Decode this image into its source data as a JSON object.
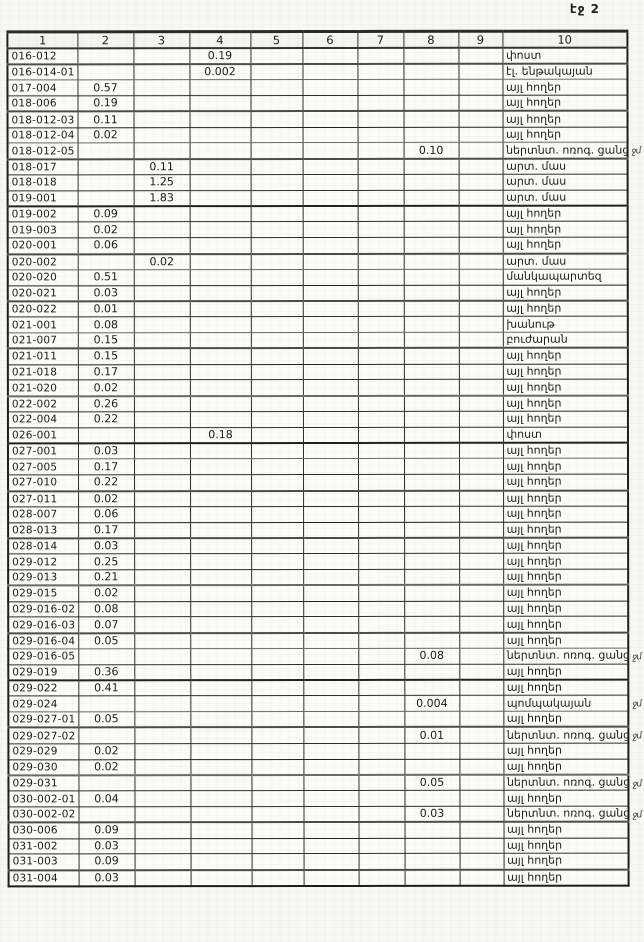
{
  "page_label": "էջ 2",
  "table": {
    "headers": [
      "1",
      "2",
      "3",
      "4",
      "5",
      "6",
      "7",
      "8",
      "9",
      "10"
    ],
    "rows": [
      {
        "code": "016-012",
        "col": 4,
        "value": "0.19",
        "use": "փոստ",
        "mark": ""
      },
      {
        "code": "016-014-01",
        "col": 4,
        "value": "0.002",
        "use": "էլ. ենթակայան",
        "mark": ""
      },
      {
        "code": "017-004",
        "col": 2,
        "value": "0.57",
        "use": "այլ հողեր",
        "mark": ""
      },
      {
        "code": "018-006",
        "col": 2,
        "value": "0.19",
        "use": "այլ հողեր",
        "mark": ""
      },
      {
        "code": "018-012-03",
        "col": 2,
        "value": "0.11",
        "use": "այլ հողեր",
        "mark": ""
      },
      {
        "code": "018-012-04",
        "col": 2,
        "value": "0.02",
        "use": "այլ հողեր",
        "mark": ""
      },
      {
        "code": "018-012-05",
        "col": 8,
        "value": "0.10",
        "use": "ներտնտ. ոռոգ. ցանց",
        "mark": "ջմ"
      },
      {
        "code": "018-017",
        "col": 3,
        "value": "0.11",
        "use": "արտ. մաս",
        "mark": ""
      },
      {
        "code": "018-018",
        "col": 3,
        "value": "1.25",
        "use": "արտ. մաս",
        "mark": ""
      },
      {
        "code": "019-001",
        "col": 3,
        "value": "1.83",
        "use": "արտ. մաս",
        "mark": ""
      },
      {
        "code": "019-002",
        "col": 2,
        "value": "0.09",
        "use": "այլ հողեր",
        "mark": ""
      },
      {
        "code": "019-003",
        "col": 2,
        "value": "0.02",
        "use": "այլ հողեր",
        "mark": ""
      },
      {
        "code": "020-001",
        "col": 2,
        "value": "0.06",
        "use": "այլ հողեր",
        "mark": ""
      },
      {
        "code": "020-002",
        "col": 3,
        "value": "0.02",
        "use": "արտ. մաս",
        "mark": ""
      },
      {
        "code": "020-020",
        "col": 2,
        "value": "0.51",
        "use": "մանկապարտեզ",
        "mark": ""
      },
      {
        "code": "020-021",
        "col": 2,
        "value": "0.03",
        "use": "այլ հողեր",
        "mark": ""
      },
      {
        "code": "020-022",
        "col": 2,
        "value": "0.01",
        "use": "այլ հողեր",
        "mark": ""
      },
      {
        "code": "021-001",
        "col": 2,
        "value": "0.08",
        "use": "խանութ",
        "mark": ""
      },
      {
        "code": "021-007",
        "col": 2,
        "value": "0.15",
        "use": "բուժարան",
        "mark": ""
      },
      {
        "code": "021-011",
        "col": 2,
        "value": "0.15",
        "use": "այլ հողեր",
        "mark": ""
      },
      {
        "code": "021-018",
        "col": 2,
        "value": "0.17",
        "use": "այլ հողեր",
        "mark": ""
      },
      {
        "code": "021-020",
        "col": 2,
        "value": "0.02",
        "use": "այլ հողեր",
        "mark": ""
      },
      {
        "code": "022-002",
        "col": 2,
        "value": "0.26",
        "use": "այլ հողեր",
        "mark": ""
      },
      {
        "code": "022-004",
        "col": 2,
        "value": "0.22",
        "use": "այլ հողեր",
        "mark": ""
      },
      {
        "code": "026-001",
        "col": 4,
        "value": "0.18",
        "use": "փոստ",
        "mark": ""
      },
      {
        "code": "027-001",
        "col": 2,
        "value": "0.03",
        "use": "այլ հողեր",
        "mark": ""
      },
      {
        "code": "027-005",
        "col": 2,
        "value": "0.17",
        "use": "այլ հողեր",
        "mark": ""
      },
      {
        "code": "027-010",
        "col": 2,
        "value": "0.22",
        "use": "այլ հողեր",
        "mark": ""
      },
      {
        "code": "027-011",
        "col": 2,
        "value": "0.02",
        "use": "այլ հողեր",
        "mark": ""
      },
      {
        "code": "028-007",
        "col": 2,
        "value": "0.06",
        "use": "այլ հողեր",
        "mark": ""
      },
      {
        "code": "028-013",
        "col": 2,
        "value": "0.17",
        "use": "այլ հողեր",
        "mark": ""
      },
      {
        "code": "028-014",
        "col": 2,
        "value": "0.03",
        "use": "այլ հողեր",
        "mark": ""
      },
      {
        "code": "029-012",
        "col": 2,
        "value": "0.25",
        "use": "այլ հողեր",
        "mark": ""
      },
      {
        "code": "029-013",
        "col": 2,
        "value": "0.21",
        "use": "այլ հողեր",
        "mark": ""
      },
      {
        "code": "029-015",
        "col": 2,
        "value": "0.02",
        "use": "այլ հողեր",
        "mark": ""
      },
      {
        "code": "029-016-02",
        "col": 2,
        "value": "0.08",
        "use": "այլ հողեր",
        "mark": ""
      },
      {
        "code": "029-016-03",
        "col": 2,
        "value": "0.07",
        "use": "այլ հողեր",
        "mark": ""
      },
      {
        "code": "029-016-04",
        "col": 2,
        "value": "0.05",
        "use": "այլ հողեր",
        "mark": ""
      },
      {
        "code": "029-016-05",
        "col": 8,
        "value": "0.08",
        "use": "ներտնտ. ոռոգ. ցանց",
        "mark": "ջմ"
      },
      {
        "code": "029-019",
        "col": 2,
        "value": "0.36",
        "use": "այլ հողեր",
        "mark": ""
      },
      {
        "code": "029-022",
        "col": 2,
        "value": "0.41",
        "use": "այլ հողեր",
        "mark": ""
      },
      {
        "code": "029-024",
        "col": 8,
        "value": "0.004",
        "use": "պոմպակայան",
        "mark": "ջմ"
      },
      {
        "code": "029-027-01",
        "col": 2,
        "value": "0.05",
        "use": "այլ հողեր",
        "mark": ""
      },
      {
        "code": "029-027-02",
        "col": 8,
        "value": "0.01",
        "use": "ներտնտ. ոռոգ. ցանց",
        "mark": "ջմ"
      },
      {
        "code": "029-029",
        "col": 2,
        "value": "0.02",
        "use": "այլ հողեր",
        "mark": ""
      },
      {
        "code": "029-030",
        "col": 2,
        "value": "0.02",
        "use": "այլ հողեր",
        "mark": ""
      },
      {
        "code": "029-031",
        "col": 8,
        "value": "0.05",
        "use": "ներտնտ. ոռոգ. ցանց",
        "mark": "ջմ"
      },
      {
        "code": "030-002-01",
        "col": 2,
        "value": "0.04",
        "use": "այլ հողեր",
        "mark": ""
      },
      {
        "code": "030-002-02",
        "col": 8,
        "value": "0.03",
        "use": "ներտնտ. ոռոգ. ցանց",
        "mark": "ջմ"
      },
      {
        "code": "030-006",
        "col": 2,
        "value": "0.09",
        "use": "այլ հողեր",
        "mark": ""
      },
      {
        "code": "031-002",
        "col": 2,
        "value": "0.03",
        "use": "այլ հողեր",
        "mark": ""
      },
      {
        "code": "031-003",
        "col": 2,
        "value": "0.09",
        "use": "այլ հողեր",
        "mark": ""
      },
      {
        "code": "031-004",
        "col": 2,
        "value": "0.03",
        "use": "այլ հողեր",
        "mark": ""
      }
    ]
  }
}
